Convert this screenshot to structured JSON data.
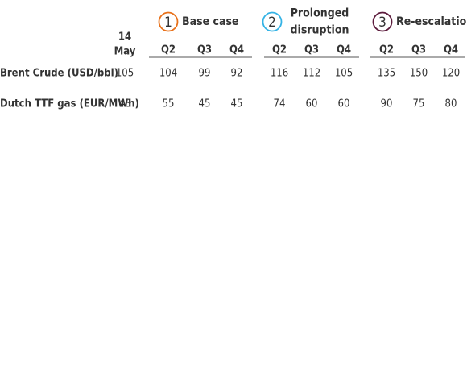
{
  "date_header": [
    "14",
    "May"
  ],
  "scenarios": [
    {
      "number": "1",
      "name": [
        "Base case"
      ],
      "color": "#e8711a",
      "quarters": [
        "Q2",
        "Q3",
        "Q4"
      ]
    },
    {
      "number": "2",
      "name": [
        "Prolonged",
        "disruption"
      ],
      "color": "#35b3e5",
      "quarters": [
        "Q2",
        "Q3",
        "Q4"
      ]
    },
    {
      "number": "3",
      "name": [
        "Re-escalation"
      ],
      "color": "#5c1b3c",
      "quarters": [
        "Q2",
        "Q3",
        "Q4"
      ]
    }
  ],
  "rows": [
    {
      "label": "Brent Crude (USD/bbl)",
      "current": "105",
      "values": [
        [
          "104",
          "99",
          "92"
        ],
        [
          "116",
          "112",
          "105"
        ],
        [
          "135",
          "150",
          "120"
        ]
      ]
    },
    {
      "label": "Dutch TTF gas (EUR/MWh)",
      "current": "48",
      "values": [
        [
          "55",
          "45",
          "45"
        ],
        [
          "74",
          "60",
          "60"
        ],
        [
          "90",
          "75",
          "80"
        ]
      ]
    }
  ]
}
